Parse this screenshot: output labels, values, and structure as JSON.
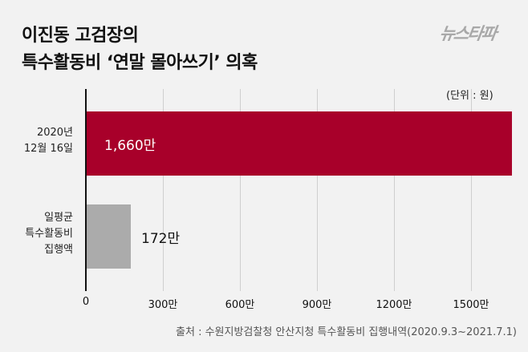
{
  "header": {
    "title_line1": "이진동 고검장의",
    "title_line2": "특수활동비 ‘연말 몰아쓰기’ 의혹",
    "logo": "뉴스타파"
  },
  "unit_label": "(단위 : 원)",
  "source": "출처 : 수원지방검찰청 안산지청 특수활동비 집행내역(2020.9.3~2021.7.1)",
  "colors": {
    "highlight": "#a8002a",
    "baseline": "#ababab",
    "background": "#f2f2f2"
  },
  "categories_display": [
    {
      "lines": [
        "2020년",
        "12월 16일"
      ],
      "value_label": "1,660만"
    },
    {
      "lines": [
        "일평균",
        "특수활동비",
        "집행액"
      ],
      "value_label": "172만"
    }
  ],
  "ticks": [
    "0",
    "300만",
    "600만",
    "900만",
    "1200만",
    "1500만"
  ],
  "chart_data": {
    "type": "bar",
    "orientation": "horizontal",
    "title": "이진동 고검장의 특수활동비 ‘연말 몰아쓰기’ 의혹",
    "categories": [
      "2020년 12월 16일",
      "일평균 특수활동비 집행액"
    ],
    "values": [
      16600000,
      1720000
    ],
    "value_labels": [
      "1,660만",
      "172만"
    ],
    "unit": "원",
    "xlabel": "",
    "ylabel": "",
    "xlim": [
      0,
      16600000
    ],
    "xticks": [
      0,
      3000000,
      6000000,
      9000000,
      12000000,
      15000000
    ],
    "xtick_labels": [
      "0",
      "300만",
      "600만",
      "900만",
      "1200만",
      "1500만"
    ],
    "grid": "vertical",
    "legend": "none",
    "source": "수원지방검찰청 안산지청 특수활동비 집행내역(2020.9.3~2021.7.1)"
  }
}
